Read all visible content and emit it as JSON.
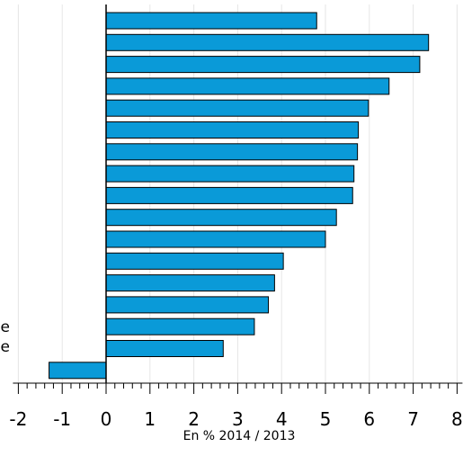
{
  "chart_data": {
    "type": "bar",
    "orientation": "horizontal",
    "categories": [
      "",
      "",
      "",
      "",
      "",
      "",
      "",
      "",
      "",
      "",
      "",
      "",
      "",
      "",
      "",
      "",
      ""
    ],
    "values": [
      4.8,
      7.35,
      7.15,
      6.45,
      5.98,
      5.75,
      5.73,
      5.65,
      5.62,
      5.25,
      5.0,
      4.04,
      3.84,
      3.7,
      3.38,
      2.67,
      -1.3
    ],
    "xlim": [
      -2,
      8
    ],
    "xticks": [
      "-2",
      "-1",
      "0",
      "1",
      "2",
      "3",
      "4",
      "5",
      "6",
      "7",
      "8"
    ],
    "xlabel": "En % 2014 / 2013",
    "title": "",
    "grid": "vertical",
    "bar_color": "#0a9ad8",
    "partial_labels": [
      "e",
      "e"
    ]
  }
}
